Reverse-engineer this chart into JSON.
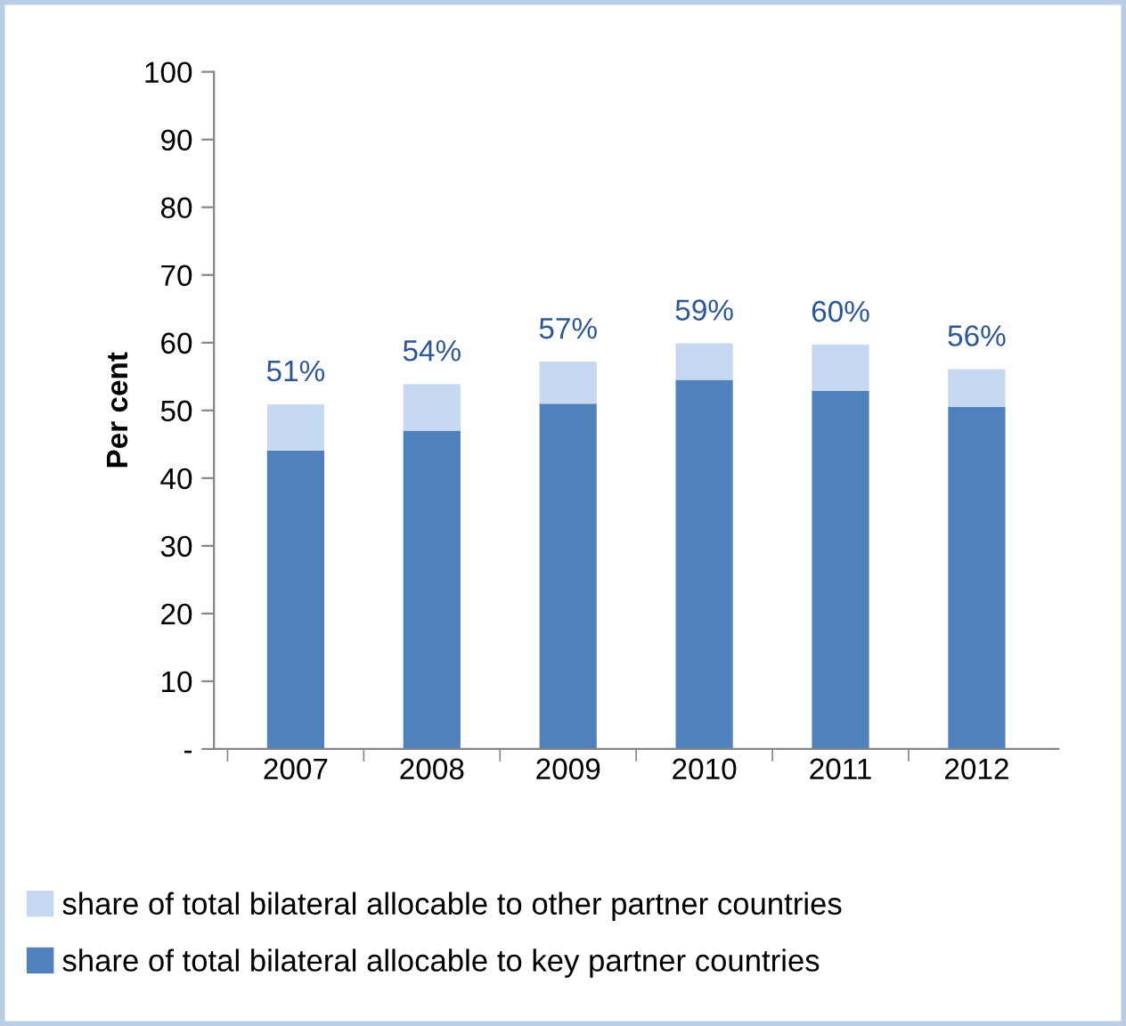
{
  "chart_data": {
    "type": "bar",
    "ylabel": "Per cent",
    "stacked": true,
    "categories": [
      "2007",
      "2008",
      "2009",
      "2010",
      "2011",
      "2012"
    ],
    "series": [
      {
        "name": "share of total bilateral allocable to key partner countries",
        "color": "#4f81bd",
        "values": [
          44.1,
          47.0,
          51.0,
          54.5,
          52.9,
          50.5
        ]
      },
      {
        "name": "share of total bilateral allocable to other partner countries",
        "color": "#c6d9f1",
        "values": [
          6.8,
          6.9,
          6.2,
          5.4,
          6.8,
          5.6
        ]
      }
    ],
    "totals": [
      "51%",
      "54%",
      "57%",
      "59%",
      "60%",
      "56%"
    ],
    "ylim": [
      0,
      100
    ],
    "yticks": [
      {
        "value": 0,
        "label": "-"
      },
      10,
      20,
      30,
      40,
      50,
      60,
      70,
      80,
      90,
      100
    ],
    "grid": false,
    "legend": "bottom"
  }
}
